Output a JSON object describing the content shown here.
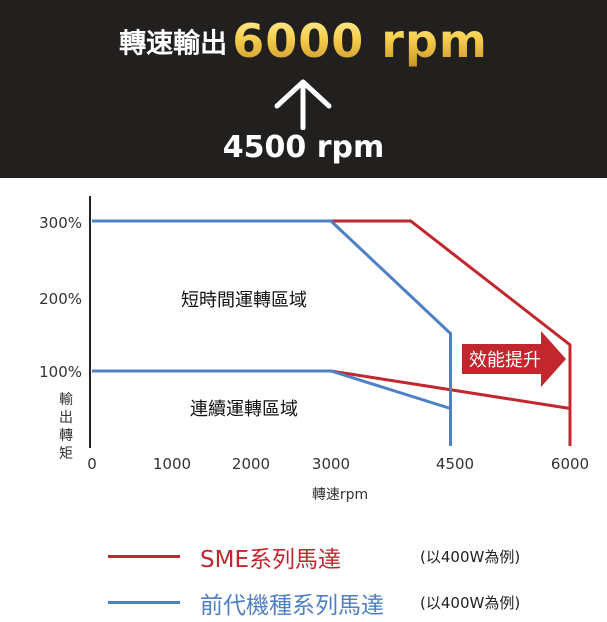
{
  "banner": {
    "prefix": "轉速輸出",
    "new_rpm": "6000 rpm",
    "old_rpm": "4500 rpm"
  },
  "chart_data": {
    "type": "line",
    "xlabel": "轉速rpm",
    "ylabel": "輸出轉矩",
    "x_ticks": [
      "0",
      "1000",
      "2000",
      "3000",
      "4500",
      "6000"
    ],
    "y_ticks": [
      "100%",
      "200%",
      "300%"
    ],
    "xlim": [
      0,
      6000
    ],
    "ylim": [
      0,
      300
    ],
    "series": [
      {
        "name": "SME系列馬達",
        "color": "#c1272d",
        "lines": [
          {
            "x": [
              0,
              4000,
              6000,
              6000
            ],
            "y": [
              300,
              300,
              135,
              0
            ]
          },
          {
            "x": [
              0,
              3000,
              6000
            ],
            "y": [
              100,
              100,
              50
            ]
          }
        ]
      },
      {
        "name": "前代機種系列馬達",
        "color": "#4f7fc4",
        "lines": [
          {
            "x": [
              0,
              3000,
              4500,
              4500
            ],
            "y": [
              300,
              300,
              150,
              0
            ]
          },
          {
            "x": [
              0,
              3000,
              4500
            ],
            "y": [
              100,
              100,
              50
            ]
          }
        ]
      }
    ],
    "annotations": {
      "short_term": "短時間運轉區域",
      "continuous": "連續運轉區域",
      "efficiency": "效能提升"
    },
    "arrow_color": "#c1272d"
  },
  "legend": [
    {
      "name": "SME系列馬達",
      "note": "(以400W為例)",
      "color": "#c1272d"
    },
    {
      "name": "前代機種系列馬達",
      "note": "(以400W為例)",
      "color": "#4f7fc4"
    }
  ]
}
